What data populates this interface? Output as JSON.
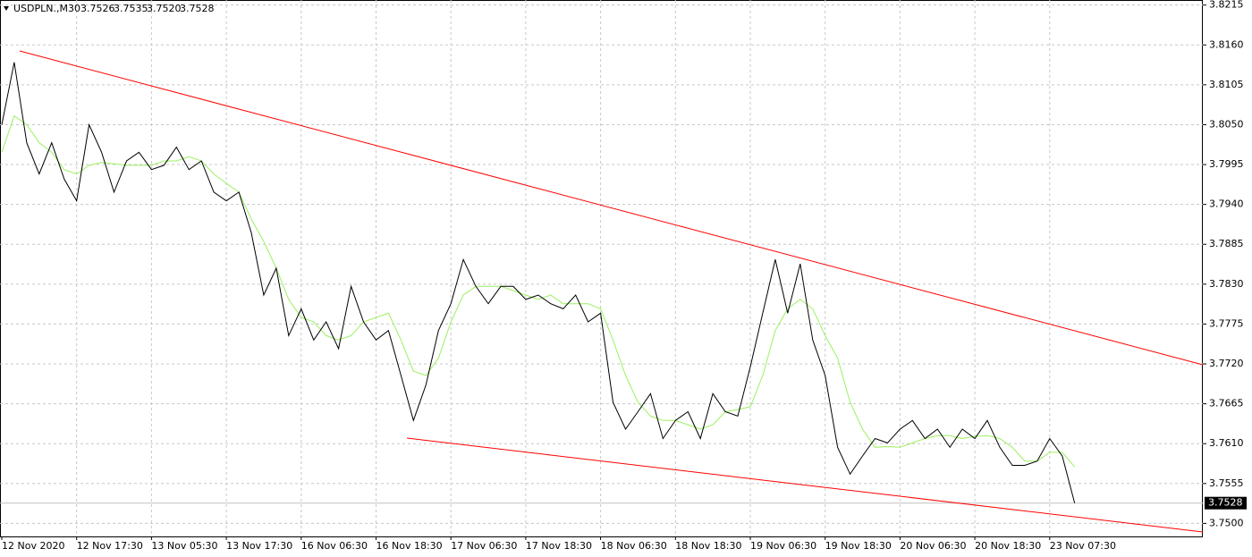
{
  "chart_data": {
    "type": "line",
    "title": "USDPLN.,M30",
    "ohlc": [
      3.7526,
      3.7535,
      {
        "value": 3.752,
        "label": "3.7520"
      },
      3.7528
    ],
    "current_price": 3.7528,
    "categories": [
      "12 Nov 2020",
      null,
      null,
      null,
      null,
      null,
      "12 Nov 17:30",
      null,
      null,
      null,
      null,
      null,
      "13 Nov 05:30",
      null,
      null,
      null,
      null,
      null,
      "13 Nov 17:30",
      null,
      null,
      null,
      null,
      null,
      "16 Nov 06:30",
      null,
      null,
      null,
      null,
      null,
      "16 Nov 18:30",
      null,
      null,
      null,
      null,
      null,
      "17 Nov 06:30",
      null,
      null,
      null,
      null,
      null,
      "17 Nov 18:30",
      null,
      null,
      null,
      null,
      null,
      "18 Nov 06:30",
      null,
      null,
      null,
      null,
      null,
      "18 Nov 18:30",
      null,
      null,
      null,
      null,
      null,
      "19 Nov 06:30",
      null,
      null,
      null,
      null,
      null,
      "19 Nov 18:30",
      null,
      null,
      null,
      null,
      null,
      "20 Nov 06:30",
      null,
      null,
      null,
      null,
      null,
      "20 Nov 18:30",
      null,
      null,
      null,
      null,
      null,
      "23 Nov 07:30",
      null,
      null
    ],
    "series": [
      {
        "color": "#000000",
        "values": [
          3.805,
          3.8136,
          3.8025,
          3.7982,
          3.8025,
          3.7975,
          3.7945,
          3.805,
          3.8012,
          3.7957,
          3.8,
          3.8012,
          3.7988,
          3.7994,
          3.8019,
          3.7988,
          3.8,
          3.7957,
          3.7945,
          3.7957,
          3.7901,
          3.7815,
          3.7852,
          3.7759,
          3.7796,
          3.7753,
          3.7778,
          3.7741,
          3.7827,
          3.7778,
          3.7753,
          3.7766,
          3.7704,
          3.7642,
          3.7691,
          3.7766,
          3.7803,
          3.7864,
          3.7827,
          3.7803,
          3.7827,
          3.7827,
          3.7809,
          3.7815,
          3.7803,
          3.7796,
          3.7815,
          3.7778,
          3.779,
          3.7667,
          3.763,
          3.7654,
          3.7679,
          3.7617,
          3.7642,
          3.7654,
          3.7617,
          3.7679,
          3.7654,
          3.7648,
          3.7716,
          3.779,
          3.7864,
          3.779,
          3.7858,
          3.7753,
          3.7704,
          3.7605,
          3.7568,
          3.7593,
          3.7617,
          3.7611,
          3.763,
          3.7642,
          3.7617,
          3.763,
          3.7605,
          3.763,
          3.7617,
          3.7642,
          3.7605,
          3.758,
          3.758,
          3.7586,
          3.7617,
          3.7593,
          3.7528
        ]
      },
      {
        "color": "#9cf060",
        "values": [
          3.8012,
          3.8062,
          3.805,
          3.8025,
          3.8012,
          3.7988,
          3.7982,
          3.7994,
          3.7998,
          3.7996,
          3.7994,
          3.7994,
          3.7994,
          3.8,
          3.8,
          3.8006,
          3.8,
          3.7982,
          3.7969,
          3.7957,
          3.792,
          3.7889,
          3.7852,
          3.7809,
          3.7784,
          3.7778,
          3.7759,
          3.7753,
          3.7759,
          3.7778,
          3.7784,
          3.779,
          3.7753,
          3.771,
          3.7704,
          3.7728,
          3.7778,
          3.7815,
          3.7827,
          3.7827,
          3.7827,
          3.7821,
          3.7815,
          3.7809,
          3.7815,
          3.7803,
          3.7803,
          3.7803,
          3.7796,
          3.7753,
          3.7704,
          3.7667,
          3.7648,
          3.7642,
          3.7642,
          3.7636,
          3.763,
          3.7636,
          3.7654,
          3.7657,
          3.7661,
          3.7704,
          3.7766,
          3.7796,
          3.7809,
          3.7796,
          3.7759,
          3.7728,
          3.7667,
          3.763,
          3.7605,
          3.7606,
          3.7605,
          3.7611,
          3.7617,
          3.7621,
          3.7621,
          3.7617,
          3.762,
          3.7621,
          3.7617,
          3.7605,
          3.7586,
          3.7586,
          3.7598,
          3.7598,
          3.7578
        ]
      }
    ],
    "ylim": [
      3.7482,
      3.8222
    ],
    "yticks": [
      {
        "value": 3.75,
        "label": "3.7500"
      },
      3.7555,
      {
        "value": 3.761,
        "label": "3.7610"
      },
      3.7665,
      {
        "value": 3.772,
        "label": "3.7720"
      },
      3.7775,
      {
        "value": 3.783,
        "label": "3.7830"
      },
      3.7885,
      {
        "value": 3.794,
        "label": "3.7940"
      },
      3.7995,
      {
        "value": 3.805,
        "label": "3.8050"
      },
      3.8105,
      {
        "value": 3.816,
        "label": "3.8160"
      },
      3.8215
    ],
    "grid": true
  }
}
